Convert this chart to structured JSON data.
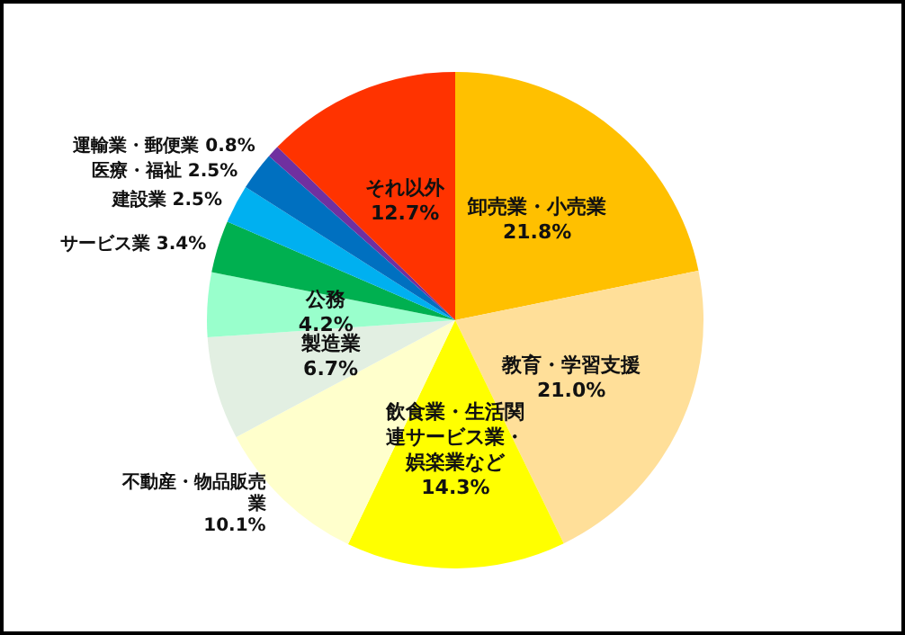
{
  "chart_data": {
    "type": "pie",
    "categories": [
      "卸売業・小売業",
      "教育・学習支援",
      "飲食業・生活関連サービス業・娯楽業など",
      "不動産・物品販売業",
      "製造業",
      "公務",
      "サービス業",
      "建設業",
      "医療・福祉",
      "運輸業・郵便業",
      "それ以外"
    ],
    "values": [
      21.8,
      21.0,
      14.3,
      10.1,
      6.7,
      4.2,
      3.4,
      2.5,
      2.5,
      0.8,
      12.7
    ],
    "value_labels": [
      "21.8%",
      "21.0%",
      "14.3%",
      "10.1%",
      "6.7%",
      "4.2%",
      "3.4%",
      "2.5%",
      "2.5%",
      "0.8%",
      "12.7%"
    ],
    "colors": [
      "#ffc000",
      "#ffdf99",
      "#ffff00",
      "#ffffcc",
      "#e2efe2",
      "#99ffcc",
      "#00b050",
      "#00b0f0",
      "#0070c0",
      "#7030a0",
      "#ff3300"
    ],
    "legend": false
  }
}
